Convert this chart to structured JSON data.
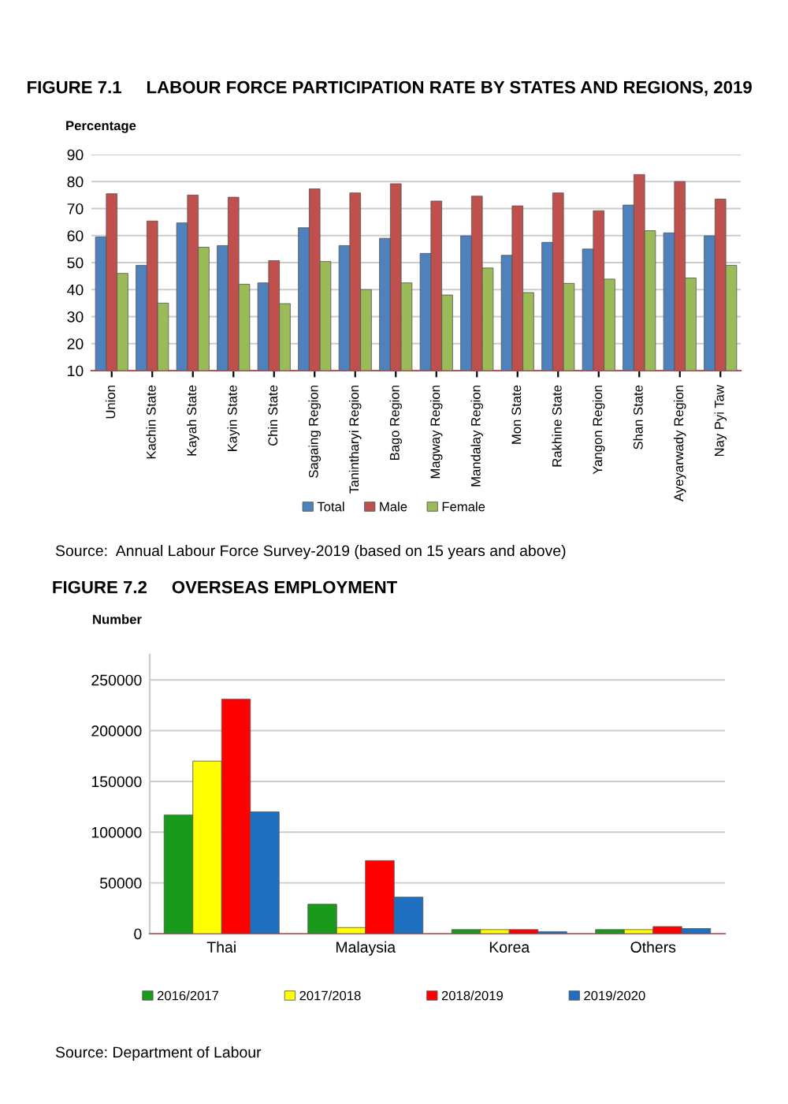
{
  "chart_data": [
    {
      "type": "bar",
      "title": "FIGURE 7.1     LABOUR FORCE PARTICIPATION RATE BY STATES AND REGIONS, 2019",
      "ylabel": "Percentage",
      "categories": [
        "Union",
        "Kachin State",
        "Kayah State",
        "Kayin State",
        "Chin State",
        "Sagaing Region",
        "Tanintharyi Region",
        "Bago Region",
        "Magway Region",
        "Mandalay Region",
        "Mon State",
        "Rakhine State",
        "Yangon Region",
        "Shan State",
        "Ayeyarwady Region",
        "Nay Pyi Taw"
      ],
      "series": [
        {
          "name": "Total",
          "color": "#4f81bd",
          "values": [
            59.5,
            49,
            64.7,
            56.3,
            42.5,
            62.9,
            56.3,
            59,
            53.4,
            59.9,
            52.7,
            57.5,
            55,
            71.3,
            61,
            59.9
          ]
        },
        {
          "name": "Male",
          "color": "#c0504d",
          "values": [
            75.5,
            65.4,
            75,
            74.2,
            50.7,
            77.3,
            75.8,
            79.2,
            72.8,
            74.6,
            71,
            75.8,
            69.2,
            82.6,
            80,
            73.5
          ]
        },
        {
          "name": "Female",
          "color": "#9bbb59",
          "values": [
            46,
            35,
            55.7,
            42,
            34.8,
            50.4,
            40,
            42.5,
            38,
            48,
            38.9,
            42.3,
            43.9,
            61.8,
            44.3,
            49
          ]
        }
      ],
      "ylim": [
        10,
        90
      ],
      "yticks": [
        10,
        20,
        30,
        40,
        50,
        60,
        70,
        80,
        90
      ],
      "grid": "y",
      "legend": "bottom",
      "annotations": [
        "Source:  Annual Labour Force Survey-2019 (based on 15 years and above)"
      ]
    },
    {
      "type": "bar",
      "title": "FIGURE 7.2     OVERSEAS EMPLOYMENT",
      "ylabel": "Number",
      "categories": [
        "Thai",
        "Malaysia",
        "Korea",
        "Others"
      ],
      "series": [
        {
          "name": "2016/2017",
          "color": "#1a9a1a",
          "values": [
            117000,
            29000,
            4000,
            4000
          ]
        },
        {
          "name": "2017/2018",
          "color": "#ffff00",
          "values": [
            170000,
            6000,
            4000,
            4000
          ]
        },
        {
          "name": "2018/2019",
          "color": "#ff0000",
          "values": [
            231000,
            72000,
            4000,
            7000
          ]
        },
        {
          "name": "2019/2020",
          "color": "#1f6fc0",
          "values": [
            120000,
            36000,
            2000,
            5000
          ]
        }
      ],
      "ylim": [
        0,
        275000
      ],
      "yticks": [
        0,
        50000,
        100000,
        150000,
        200000,
        250000
      ],
      "grid": "y",
      "legend": "bottom",
      "annotations": [
        "Source: Department of Labour"
      ]
    }
  ]
}
